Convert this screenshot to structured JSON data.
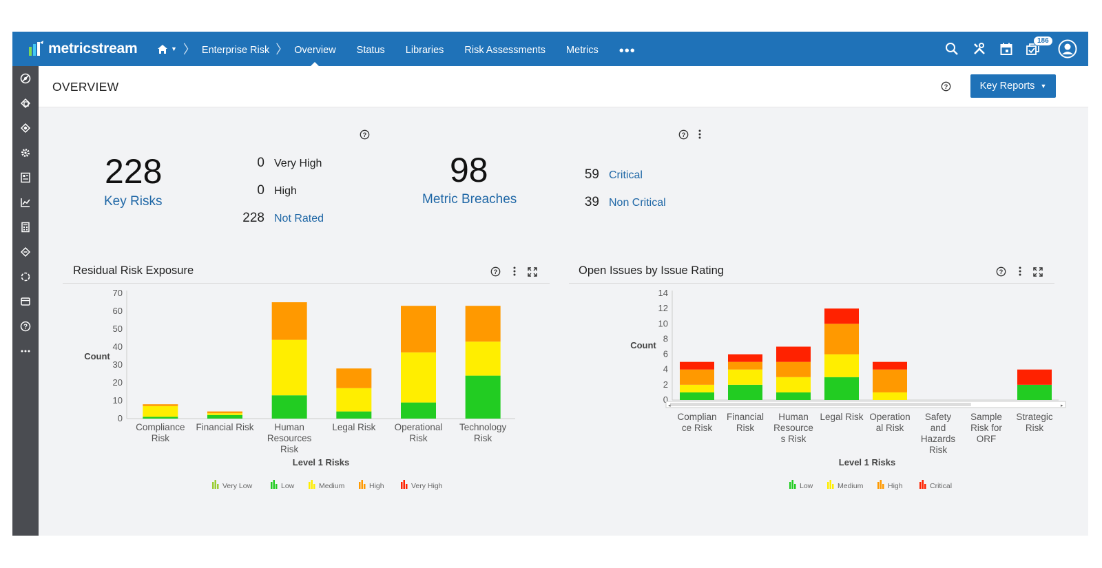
{
  "app": {
    "brand": "metricstream"
  },
  "nav": {
    "crumb": "Enterprise Risk",
    "links": [
      "Overview",
      "Status",
      "Libraries",
      "Risk Assessments",
      "Metrics"
    ],
    "more": "•••",
    "notification_count": "186"
  },
  "header": {
    "title": "OVERVIEW",
    "key_reports": "Key Reports"
  },
  "summary": {
    "key_risks_value": "228",
    "key_risks_label": "Key Risks",
    "rating_rows": [
      {
        "value": "0",
        "label": "Very High"
      },
      {
        "value": "0",
        "label": "High"
      },
      {
        "value": "228",
        "label": "Not Rated"
      }
    ],
    "metric_breaches_value": "98",
    "metric_breaches_label": "Metric Breaches",
    "breach_rows": [
      {
        "value": "59",
        "label": "Critical"
      },
      {
        "value": "39",
        "label": "Non Critical"
      }
    ]
  },
  "colors": {
    "very_low": "#9acd32",
    "low": "#22cc22",
    "medium": "#ffee00",
    "high": "#ff9900",
    "very_high": "#ff2200",
    "critical": "#ff2200",
    "brand": "#1f72b8"
  },
  "chart_data": [
    {
      "type": "bar",
      "title": "Residual Risk Exposure",
      "xlabel": "Level 1 Risks",
      "ylabel": "Count",
      "ylim": [
        0,
        70
      ],
      "yticks": [
        0,
        10,
        20,
        30,
        40,
        50,
        60,
        70
      ],
      "stacked": true,
      "categories": [
        [
          "Compliance",
          "Risk"
        ],
        [
          "Financial Risk"
        ],
        [
          "Human",
          "Resources",
          "Risk"
        ],
        [
          "Legal Risk"
        ],
        [
          "Operational",
          "Risk"
        ],
        [
          "Technology",
          "Risk"
        ]
      ],
      "series": [
        {
          "name": "Very Low",
          "color": "#9acd32",
          "values": [
            0,
            0,
            0,
            0,
            0,
            0
          ]
        },
        {
          "name": "Low",
          "color": "#22cc22",
          "values": [
            1,
            2,
            13,
            4,
            9,
            24
          ]
        },
        {
          "name": "Medium",
          "color": "#ffee00",
          "values": [
            6,
            1,
            31,
            13,
            28,
            19
          ]
        },
        {
          "name": "High",
          "color": "#ff9900",
          "values": [
            1,
            1,
            21,
            11,
            26,
            20
          ]
        },
        {
          "name": "Very High",
          "color": "#ff2200",
          "values": [
            0,
            0,
            0,
            0,
            0,
            0
          ]
        }
      ],
      "legend_position": "bottom",
      "grid": false
    },
    {
      "type": "bar",
      "title": "Open Issues by Issue Rating",
      "xlabel": "Level 1 Risks",
      "ylabel": "Count",
      "ylim": [
        0,
        14
      ],
      "yticks": [
        0,
        2,
        4,
        6,
        8,
        10,
        12,
        14
      ],
      "stacked": true,
      "categories": [
        [
          "Complian",
          "ce Risk"
        ],
        [
          "Financial",
          "Risk"
        ],
        [
          "Human",
          "Resource",
          "s Risk"
        ],
        [
          "Legal Risk"
        ],
        [
          "Operation",
          "al Risk"
        ],
        [
          "Safety",
          "and",
          "Hazards",
          "Risk"
        ],
        [
          "Sample",
          "Risk for",
          "ORF"
        ],
        [
          "Strategic",
          "Risk"
        ]
      ],
      "series": [
        {
          "name": "Low",
          "color": "#22cc22",
          "values": [
            1,
            2,
            1,
            3,
            0,
            0,
            0,
            2
          ]
        },
        {
          "name": "Medium",
          "color": "#ffee00",
          "values": [
            1,
            2,
            2,
            3,
            1,
            0,
            0,
            0
          ]
        },
        {
          "name": "High",
          "color": "#ff9900",
          "values": [
            2,
            1,
            2,
            4,
            3,
            0,
            0,
            0
          ]
        },
        {
          "name": "Critical",
          "color": "#ff2200",
          "values": [
            1,
            1,
            2,
            2,
            1,
            0,
            0,
            2
          ]
        }
      ],
      "legend_position": "bottom",
      "grid": false
    }
  ]
}
